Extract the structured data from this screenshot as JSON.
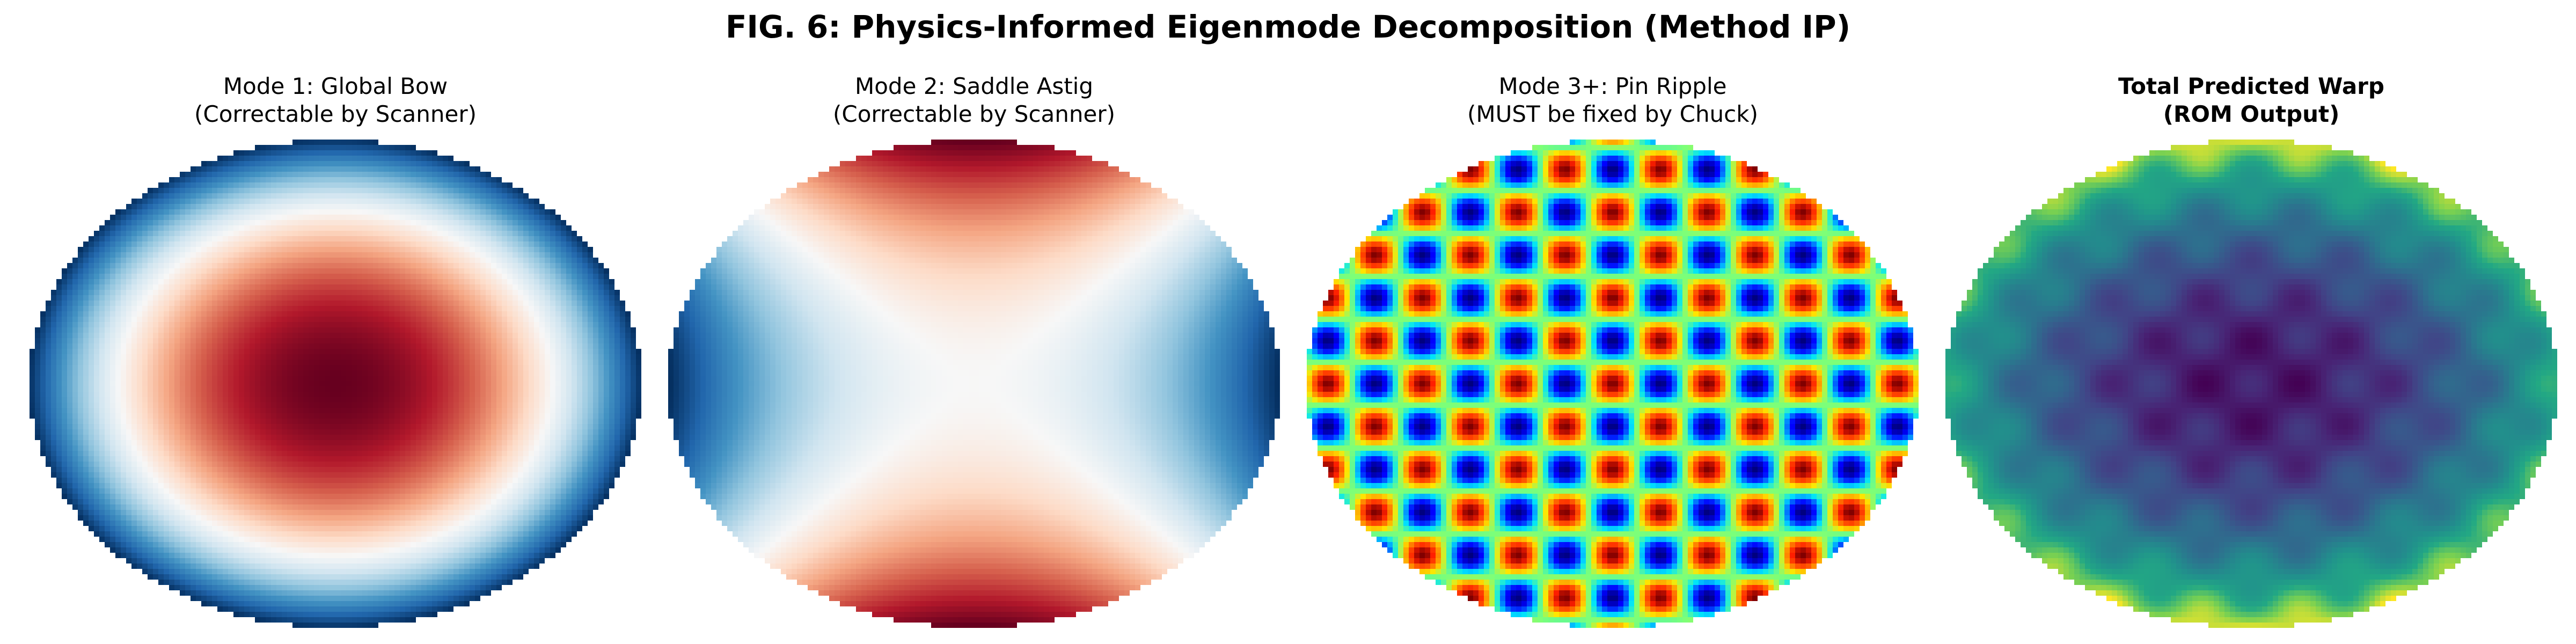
{
  "figure_title": "FIG. 6: Physics-Informed Eigenmode Decomposition (Method IP)",
  "panels": [
    {
      "title_line1": "Mode 1: Global Bow",
      "title_line2": "(Correctable by Scanner)",
      "bold": false,
      "pattern": "bowl",
      "colormap": "RdBu_r"
    },
    {
      "title_line1": "Mode 2: Saddle Astig",
      "title_line2": "(Correctable by Scanner)",
      "bold": false,
      "pattern": "saddle",
      "colormap": "RdBu_r"
    },
    {
      "title_line1": "Mode 3+: Pin Ripple",
      "title_line2": "(MUST be fixed by Chuck)",
      "bold": false,
      "pattern": "ripple",
      "colormap": "jet"
    },
    {
      "title_line1": "Total Predicted Warp",
      "title_line2": "(ROM Output)",
      "bold": true,
      "pattern": "total",
      "colormap": "viridis"
    }
  ]
}
